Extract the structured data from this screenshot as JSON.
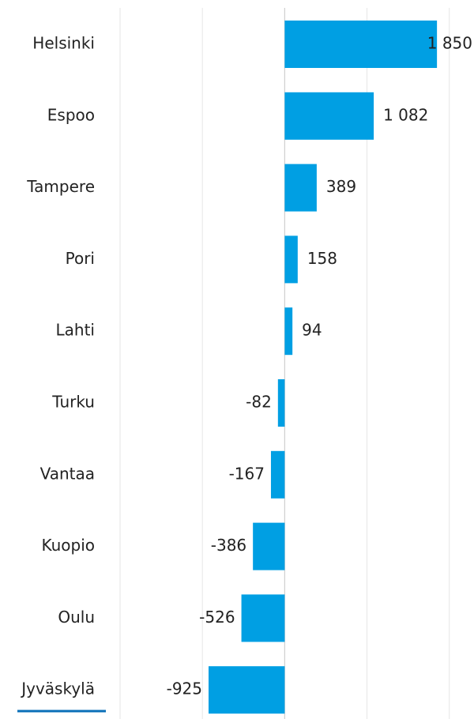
{
  "chart_data": {
    "type": "hbar",
    "categories": [
      "Helsinki",
      "Espoo",
      "Tampere",
      "Pori",
      "Lahti",
      "Turku",
      "Vantaa",
      "Kuopio",
      "Oulu",
      "Jyväskylä"
    ],
    "values": [
      1850,
      1082,
      389,
      158,
      94,
      -82,
      -167,
      -386,
      -526,
      -925
    ],
    "value_labels": [
      "1 850",
      "1 082",
      "389",
      "158",
      "94",
      "-82",
      "-167",
      "-386",
      "-526",
      "-925"
    ],
    "color": "#009fe3",
    "xlim": [
      -2000,
      2300
    ],
    "xticks": [
      -2000,
      -1000,
      0,
      1000,
      2000
    ],
    "grid": true
  }
}
